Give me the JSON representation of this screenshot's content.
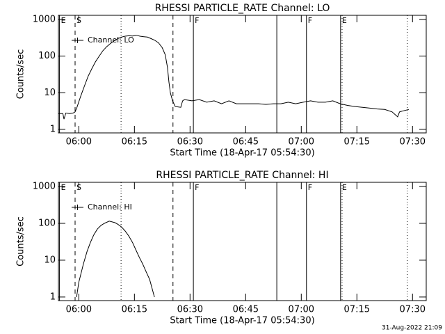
{
  "chart_data": [
    {
      "type": "line",
      "title": "RHESSI PARTICLE_RATE Channel: LO",
      "xlabel": "Start Time (18-Apr-17 05:54:30)",
      "ylabel": "Counts/sec",
      "log_y": true,
      "legend": "upper left",
      "color": "#000000",
      "xlim": [
        0,
        99.2
      ],
      "ylim": [
        0.8,
        1300
      ],
      "xticks": [
        {
          "value": 5.5,
          "label": "06:00"
        },
        {
          "value": 20.5,
          "label": "06:15"
        },
        {
          "value": 35.5,
          "label": "06:30"
        },
        {
          "value": 50.5,
          "label": "06:45"
        },
        {
          "value": 65.5,
          "label": "07:00"
        },
        {
          "value": 80.5,
          "label": "07:15"
        },
        {
          "value": 95.5,
          "label": "07:30"
        }
      ],
      "yticks": [
        1,
        10,
        100,
        1000
      ],
      "markers": [
        {
          "x": 0.3,
          "style": "solid",
          "label": "E"
        },
        {
          "x": 4.5,
          "style": "dashed",
          "label": "S"
        },
        {
          "x": 16.9,
          "style": "dotted"
        },
        {
          "x": 30.9,
          "style": "dashed"
        },
        {
          "x": 36.4,
          "style": "solid",
          "label": "F"
        },
        {
          "x": 58.9,
          "style": "solid"
        },
        {
          "x": 66.9,
          "style": "solid",
          "label": "F"
        },
        {
          "x": 76.1,
          "style": "solid",
          "label": "E"
        },
        {
          "x": 76.5,
          "style": "dotted"
        },
        {
          "x": 94.1,
          "style": "dotted"
        }
      ],
      "series": [
        {
          "name": "Channel: LO",
          "x": [
            0,
            1.2,
            1.5,
            2.0,
            3,
            4,
            4.5,
            5,
            6,
            7,
            8,
            9,
            10,
            11,
            12,
            13,
            14,
            15,
            16,
            17,
            18,
            19,
            20,
            21,
            22,
            23,
            24,
            25,
            26,
            27,
            28,
            28.8,
            29.4,
            29.8,
            30.2,
            30.8,
            31.5,
            33,
            33.5,
            34,
            36,
            38,
            40,
            42,
            44,
            46,
            48,
            50,
            52,
            54,
            56,
            58,
            60,
            62,
            64,
            66,
            68,
            70,
            72,
            74,
            76,
            78,
            80,
            82,
            84,
            86,
            88,
            90,
            91.5,
            92,
            93,
            94.5
          ],
          "values": [
            2.7,
            2.7,
            1.9,
            2.8,
            2.7,
            2.8,
            3.0,
            4,
            8,
            15,
            28,
            45,
            70,
            100,
            140,
            180,
            220,
            260,
            300,
            330,
            350,
            360,
            355,
            370,
            350,
            340,
            330,
            300,
            270,
            230,
            170,
            110,
            50,
            20,
            10,
            6,
            4.2,
            4.0,
            6,
            6.5,
            6,
            6.5,
            5.5,
            6,
            5,
            6,
            5,
            5,
            5,
            5,
            4.8,
            5,
            5,
            5.5,
            5,
            5.5,
            6,
            5.5,
            5.5,
            6,
            5,
            4.5,
            4.2,
            4,
            3.8,
            3.6,
            3.5,
            3,
            2.2,
            3,
            3.2,
            3.5
          ]
        }
      ]
    },
    {
      "type": "line",
      "title": "RHESSI PARTICLE_RATE Channel: HI",
      "xlabel": "Start Time (18-Apr-17 05:54:30)",
      "ylabel": "Counts/sec",
      "log_y": true,
      "legend": "upper left",
      "color": "#000000",
      "xlim": [
        0,
        99.2
      ],
      "ylim": [
        0.8,
        1300
      ],
      "xticks": [
        {
          "value": 5.5,
          "label": "06:00"
        },
        {
          "value": 20.5,
          "label": "06:15"
        },
        {
          "value": 35.5,
          "label": "06:30"
        },
        {
          "value": 50.5,
          "label": "06:45"
        },
        {
          "value": 65.5,
          "label": "07:00"
        },
        {
          "value": 80.5,
          "label": "07:15"
        },
        {
          "value": 95.5,
          "label": "07:30"
        }
      ],
      "yticks": [
        1,
        10,
        100,
        1000
      ],
      "markers": [
        {
          "x": 0.3,
          "style": "solid",
          "label": "E"
        },
        {
          "x": 4.5,
          "style": "dashed",
          "label": "S"
        },
        {
          "x": 16.9,
          "style": "dotted"
        },
        {
          "x": 30.9,
          "style": "dashed"
        },
        {
          "x": 36.4,
          "style": "solid",
          "label": "F"
        },
        {
          "x": 58.9,
          "style": "solid"
        },
        {
          "x": 66.9,
          "style": "solid",
          "label": "F"
        },
        {
          "x": 76.1,
          "style": "solid",
          "label": "E"
        },
        {
          "x": 76.5,
          "style": "dotted"
        },
        {
          "x": 94.1,
          "style": "dotted"
        }
      ],
      "series": [
        {
          "name": "Channel: HI",
          "x": [
            4.9,
            5.5,
            6.75,
            7.7,
            8.6,
            9.5,
            10.5,
            11.5,
            12.4,
            13.7,
            15.2,
            16,
            17,
            18,
            19,
            20,
            20.8,
            21.8,
            22.7,
            23.6,
            24.6,
            25.9
          ],
          "values": [
            1,
            2.5,
            8,
            17,
            30,
            48,
            70,
            88,
            100,
            115,
            105,
            95,
            80,
            62,
            45,
            30,
            20,
            12,
            8,
            5,
            3,
            1
          ]
        }
      ]
    }
  ],
  "footer": "31-Aug-2022 21:09"
}
